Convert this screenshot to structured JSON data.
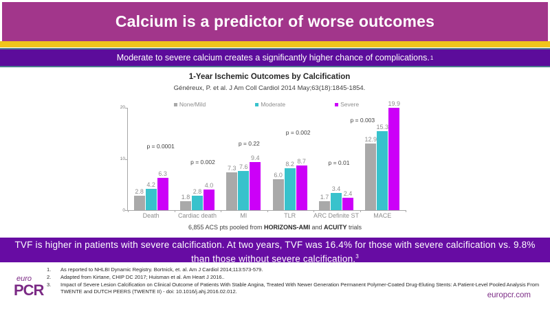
{
  "slide": {
    "title": "Calcium is a predictor of worse outcomes",
    "subtitle": "Moderate to severe calcium creates a significantly higher chance of complications.",
    "subtitle_sup": "1",
    "conclusion_line1": "TVF is higher in patients with severe calcification. At two years, TVF was 16.4% for those with severe calcification vs. 9.8%",
    "conclusion_line2": "than those without severe calcification.",
    "conclusion_sup": "3"
  },
  "chart_data": {
    "type": "bar",
    "title": "1-Year Ischemic Outcomes by Calcification",
    "source": "Généreux, P. et al. J Am Coll Cardiol 2014 May;63(18):1845-1854.",
    "categories": [
      "Death",
      "Cardiac death",
      "MI",
      "TLR",
      "ARC Definite ST",
      "MACE"
    ],
    "series": [
      {
        "name": "None/Mild",
        "color": "#a9a9a9",
        "values": [
          2.8,
          1.8,
          7.3,
          6.0,
          1.7,
          12.9
        ]
      },
      {
        "name": "Moderate",
        "color": "#38c2cc",
        "values": [
          4.2,
          2.8,
          7.6,
          8.2,
          3.4,
          15.3
        ]
      },
      {
        "name": "Severe",
        "color": "#cc00f8",
        "values": [
          6.3,
          4.0,
          9.4,
          8.7,
          2.4,
          19.9
        ]
      }
    ],
    "p_values": [
      "p = 0.0001",
      "p = 0.002",
      "p = 0.22",
      "p = 0.002",
      "p = 0.01",
      "p = 0.003"
    ],
    "ylim": [
      0,
      20
    ],
    "yticks": [
      0,
      10,
      20
    ],
    "legend_position": "top",
    "grid": false,
    "note": {
      "prefix": "6,855 ACS pts pooled from ",
      "bold1": "HORIZONS-AMI",
      "mid": " and ",
      "bold2": "ACUITY",
      "suffix": " trials"
    }
  },
  "footnotes": [
    "As reported to NHLBI Dynamic Registry. Bortnick, et. al. Am J Cardiol 2014;113:573-579.",
    "Adapted from Kirtane, CHIP DC 2017; Huisman et al. Am Heart J 2016..",
    "Impact of Severe Lesion Calcification on Clinical Outcome of Patients With Stable Angina, Treated With Newer Generation Permanent Polymer-Coated Drug-Eluting Stents: A Patient-Level Pooled Analysis From TWENTE and DUTCH PEERS (TWENTE II) - doi: 10.1016/j.ahj.2016.02.012."
  ],
  "footer": {
    "logo_top": "euro",
    "logo_bottom": "PCR",
    "website": "europcr.com"
  },
  "colors": {
    "header_bg": "#a2368b",
    "stripe_yellow": "#f0c41b",
    "banner_bg": "#5c0c9b",
    "banner_border": "#4a7b8e",
    "conclusion_bg": "#670ca3",
    "brand_purple": "#7b2a85"
  }
}
